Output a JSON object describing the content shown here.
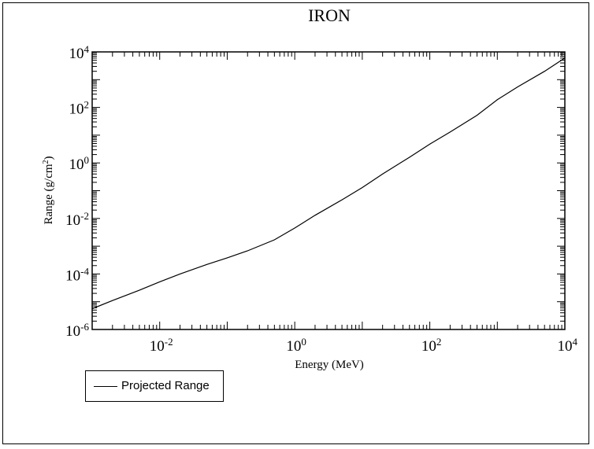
{
  "chart_data": {
    "type": "line",
    "title": "IRON",
    "xlabel": "Energy (MeV)",
    "ylabel_base": "Range (g/cm",
    "ylabel_sup": "2",
    "ylabel_end": ")",
    "x_scale": "log",
    "y_scale": "log",
    "xlim": [
      0.001,
      10000
    ],
    "ylim": [
      1e-06,
      10000
    ],
    "x_ticks": [
      {
        "base": "10",
        "exp": "-2",
        "value": 0.01
      },
      {
        "base": "10",
        "exp": "0",
        "value": 1
      },
      {
        "base": "10",
        "exp": "2",
        "value": 100
      },
      {
        "base": "10",
        "exp": "4",
        "value": 10000
      }
    ],
    "y_ticks": [
      {
        "base": "10",
        "exp": "-6",
        "value": 1e-06
      },
      {
        "base": "10",
        "exp": "-4",
        "value": 0.0001
      },
      {
        "base": "10",
        "exp": "-2",
        "value": 0.01
      },
      {
        "base": "10",
        "exp": "0",
        "value": 1
      },
      {
        "base": "10",
        "exp": "2",
        "value": 100
      },
      {
        "base": "10",
        "exp": "4",
        "value": 10000
      }
    ],
    "grid": false,
    "legend_position": "bottom-left outside",
    "series": [
      {
        "name": "Projected Range",
        "color": "#000000",
        "x": [
          0.001,
          0.002,
          0.005,
          0.01,
          0.02,
          0.05,
          0.1,
          0.2,
          0.5,
          1,
          2,
          5,
          10,
          20,
          50,
          100,
          200,
          500,
          1000,
          2000,
          5000,
          10000
        ],
        "y": [
          5.6e-06,
          1.1e-05,
          2.6e-05,
          5.2e-05,
          0.0001,
          0.00022,
          0.00038,
          0.00068,
          0.0017,
          0.0045,
          0.013,
          0.047,
          0.13,
          0.4,
          1.6,
          4.8,
          13,
          52,
          190,
          550,
          2000,
          6000
        ]
      }
    ]
  }
}
